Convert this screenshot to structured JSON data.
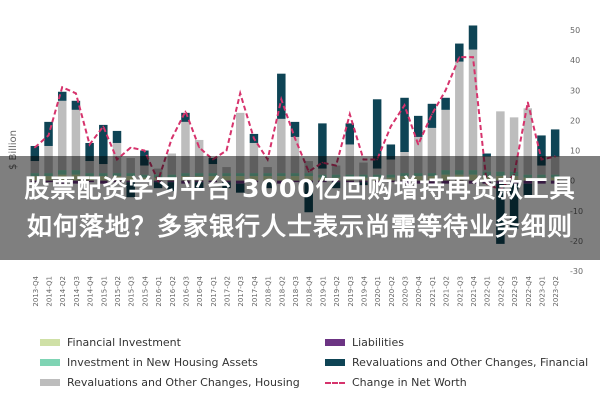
{
  "chart_data": {
    "type": "bar",
    "ylabel": "$ Billion",
    "ylim": [
      -30,
      50
    ],
    "yticks": [
      -30,
      -20,
      -10,
      0,
      10,
      20,
      30,
      40,
      50
    ],
    "categories": [
      "2013-Q4",
      "2014-Q1",
      "2014-Q2",
      "2014-Q3",
      "2014-Q4",
      "2015-Q1",
      "2015-Q2",
      "2015-Q3",
      "2015-Q4",
      "2016-Q1",
      "2016-Q2",
      "2016-Q3",
      "2016-Q4",
      "2017-Q1",
      "2017-Q2",
      "2017-Q3",
      "2017-Q4",
      "2018-Q1",
      "2018-Q2",
      "2018-Q3",
      "2018-Q4",
      "2019-Q1",
      "2019-Q2",
      "2019-Q3",
      "2019-Q4",
      "2020-Q1",
      "2020-Q2",
      "2020-Q3",
      "2020-Q4",
      "2021-Q1",
      "2021-Q2",
      "2021-Q3",
      "2021-Q4",
      "2022-Q1",
      "2022-Q2",
      "2022-Q3",
      "2022-Q4",
      "2023-Q1",
      "2023-Q2"
    ],
    "series": [
      {
        "name": "Financial Investment",
        "color": "#cfe0a6",
        "values": [
          1.5,
          1.5,
          2,
          2,
          1.5,
          1.5,
          1.5,
          1.5,
          1,
          1,
          1,
          1.5,
          1.5,
          1.5,
          1.5,
          1.5,
          1.5,
          1.5,
          1.5,
          1.5,
          1.5,
          1,
          1,
          1,
          1,
          1,
          1,
          1.5,
          1.5,
          1.5,
          2,
          2,
          2,
          1.5,
          1.5,
          1.5,
          1,
          1,
          1
        ]
      },
      {
        "name": "Investment in New Housing Assets",
        "color": "#7fd4b4",
        "values": [
          1,
          1,
          1.5,
          1.5,
          1,
          1,
          1,
          1,
          1,
          1,
          1,
          1,
          1,
          1,
          1,
          1,
          1,
          1,
          1,
          1,
          1,
          1,
          1,
          1,
          1,
          1,
          1,
          1,
          1,
          1,
          1.5,
          1.5,
          1.5,
          1.5,
          1.5,
          1.5,
          1,
          1,
          1
        ]
      },
      {
        "name": "Revaluations and Other Changes, Housing",
        "color": "#bdbdbd",
        "values": [
          4,
          9,
          23,
          20,
          4,
          3,
          10,
          5,
          3,
          2,
          7,
          17,
          11,
          3,
          2,
          20,
          10,
          2,
          18,
          12,
          4,
          2,
          3,
          10,
          4,
          2,
          5,
          7,
          12,
          15,
          20,
          36,
          40,
          5,
          20,
          18,
          22,
          3,
          6
        ]
      },
      {
        "name": "Liabilities",
        "color": "#6c3483",
        "values": [
          -0.5,
          -0.5,
          -1,
          -1,
          -0.5,
          -1,
          -0.5,
          -0.5,
          -0.5,
          -0.5,
          -0.5,
          -1,
          -0.5,
          -0.5,
          -0.5,
          -1,
          -0.5,
          -0.5,
          -1,
          -0.5,
          -0.5,
          -0.5,
          -0.5,
          -0.5,
          -0.5,
          -0.5,
          -0.5,
          -1,
          -1,
          -1,
          -1,
          -1,
          -1,
          -1,
          -1,
          -1,
          -1,
          -1,
          -1
        ]
      },
      {
        "name": "Revaluations and Other Changes, Financial",
        "color": "#0e4455",
        "values": [
          5,
          8,
          3,
          3,
          6,
          13,
          4,
          -5,
          5,
          -2,
          -3,
          3,
          -2,
          2,
          -2,
          -3,
          3,
          -2,
          15,
          5,
          -10,
          15,
          -2,
          7,
          -1,
          23,
          5,
          18,
          7,
          8,
          4,
          6,
          8,
          1,
          -20,
          -15,
          -4,
          10,
          9
        ]
      }
    ],
    "line": {
      "name": "Change in Net Worth",
      "color": "#d6336c",
      "values": [
        11,
        15,
        31,
        29,
        12,
        18,
        7,
        11,
        10,
        0,
        14,
        23,
        11,
        7,
        10,
        29,
        14,
        7,
        27,
        14,
        3,
        6,
        5,
        22,
        7,
        7,
        18,
        25,
        12,
        22,
        30,
        41,
        41,
        -1,
        -3,
        2,
        26,
        7,
        8
      ]
    },
    "legend_position": "bottom",
    "grid": false
  },
  "overlay": {
    "line1": "股票配资学习平台 3000亿回购增持再贷款工具",
    "line2": "如何落地？多家银行人士表示尚需等待业务细则"
  }
}
